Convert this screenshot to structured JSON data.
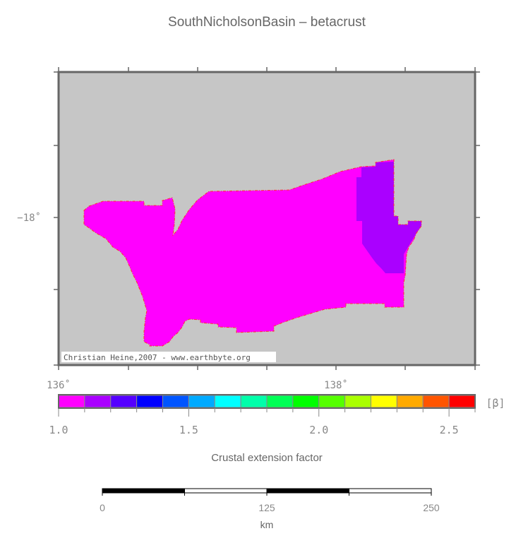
{
  "title": "SouthNicholsonBasin – betacrust",
  "map": {
    "background_color": "#c6c6c6",
    "x_tick_labels": [
      {
        "lon": 136,
        "label": "136˚"
      },
      {
        "lon": 138,
        "label": "138˚"
      }
    ],
    "y_tick_labels": [
      {
        "lat": -18,
        "label": "−18˚"
      }
    ],
    "credit": "Christian Heine,2007 - www.earthbyte.org",
    "regions": [
      {
        "beta_range": "1.0–1.1",
        "color": "#ff00ff"
      },
      {
        "beta_range": "1.1–1.2",
        "color": "#aa00ff"
      }
    ],
    "outline_color": "#ff3333"
  },
  "colorbar": {
    "unit": "[β]",
    "label": "Crustal extension factor",
    "min": 1.0,
    "max": 2.6,
    "step": 0.1,
    "colors": [
      "#ff00ff",
      "#aa00ff",
      "#5500ff",
      "#0000ff",
      "#0055ff",
      "#00aaff",
      "#00ffff",
      "#00ffaa",
      "#00ff55",
      "#00ff00",
      "#55ff00",
      "#aaff00",
      "#ffff00",
      "#ffaa00",
      "#ff5500",
      "#ff0000"
    ],
    "tick_labels": [
      {
        "value": 1.0,
        "label": "1.0"
      },
      {
        "value": 1.5,
        "label": "1.5"
      },
      {
        "value": 2.0,
        "label": "2.0"
      },
      {
        "value": 2.5,
        "label": "2.5"
      }
    ]
  },
  "scalebar": {
    "unit": "km",
    "max": 250,
    "segments": 4,
    "tick_labels": [
      {
        "value": 0,
        "label": "0"
      },
      {
        "value": 125,
        "label": "125"
      },
      {
        "value": 250,
        "label": "250"
      }
    ]
  }
}
